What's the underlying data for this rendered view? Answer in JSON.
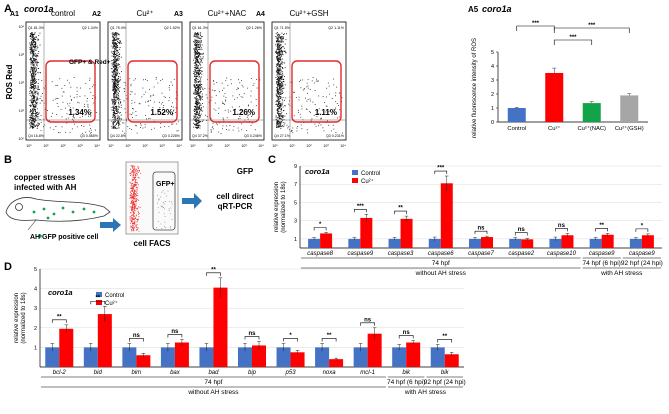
{
  "panelA": {
    "letter": "A",
    "gene": "coro1a",
    "ylabel": "ROS Red",
    "xlabel": "GFP",
    "gate_note": "GFP+ & Red+",
    "plots": [
      {
        "id": "A1",
        "title": "control",
        "q1": "Q1 81.3%",
        "q2": "Q2 1.34%",
        "q3": "Q3 0.565%",
        "q4": "Q4 16.8%",
        "gate": "1.34%"
      },
      {
        "id": "A2",
        "title": "Cu²⁺",
        "q1": "Q1 75.4%",
        "q2": "Q2 1.52%",
        "q3": "Q3 0.228%",
        "q4": "Q4 22.8%",
        "gate": "1.52%"
      },
      {
        "id": "A3",
        "title": "Cu²⁺+NAC",
        "q1": "Q1 61.3%",
        "q2": "Q2 1.26%",
        "q3": "Q3 0.246%",
        "q4": "Q4 37.2%",
        "gate": "1.26%"
      },
      {
        "id": "A4",
        "title": "Cu²⁺+GSH",
        "q1": "Q1 71.5%",
        "q2": "Q2 1.11%",
        "q3": "Q3 0.231%",
        "q4": "Q4 27.1%",
        "gate": "1.11%"
      }
    ],
    "axis_ticks": [
      "10⁰",
      "10¹",
      "10²",
      "10³",
      "10⁴"
    ]
  },
  "panelB": {
    "letter": "B",
    "text1": "copper stresses",
    "text2": "infected with AH",
    "legend": "AH  GFP positive cell",
    "facs_label": "cell FACS",
    "gate_label": "GFP+",
    "result1": "cell direct",
    "result2": "qRT-PCR"
  },
  "colors": {
    "control": "#4472c4",
    "cu": "#ff0000",
    "nac": "#13a44a",
    "gsh": "#a6a6a6",
    "gate": "#e32b2b",
    "arrow": "#2e75b6"
  },
  "chart_data": [
    {
      "panel": "A5",
      "type": "bar",
      "title": "coro1a",
      "ylabel": "relative fluorescence intensity of ROS",
      "categories": [
        "Control",
        "Cu²⁺",
        "Cu²⁺(NAC)",
        "Cu²⁺(GSH)"
      ],
      "values": [
        1.0,
        3.5,
        1.35,
        1.9
      ],
      "errors": [
        0.05,
        0.35,
        0.1,
        0.12
      ],
      "ylim": [
        0,
        5
      ],
      "yticks": [
        "0",
        "1",
        "2",
        "3",
        "4",
        "5"
      ],
      "significance": [
        "***",
        "***",
        "***"
      ]
    },
    {
      "panel": "C",
      "type": "bar",
      "title": "coro1a",
      "ylabel": "relative expression (normalized to 18s)",
      "categories": [
        "caspase8",
        "caspase9",
        "caspase3",
        "caspase6",
        "caspase7",
        "caspase2",
        "caspase10",
        "caspase9",
        "caspase9"
      ],
      "series": [
        {
          "name": "Control",
          "values": [
            1.0,
            1.0,
            1.0,
            1.0,
            1.0,
            1.0,
            1.0,
            1.0,
            1.0
          ],
          "errors": [
            0.15,
            0.15,
            0.15,
            0.2,
            0.15,
            0.15,
            0.2,
            0.15,
            0.15
          ]
        },
        {
          "name": "Cu²⁺",
          "values": [
            1.6,
            3.3,
            3.2,
            7.1,
            1.2,
            0.95,
            1.4,
            1.45,
            1.4
          ],
          "errors": [
            0.1,
            0.4,
            0.3,
            0.8,
            0.1,
            0.1,
            0.2,
            0.15,
            0.15
          ]
        }
      ],
      "significance": [
        "*",
        "***",
        "**",
        "***",
        "ns",
        "ns",
        "ns",
        "**",
        "*"
      ],
      "ylim": [
        0,
        9
      ],
      "yticks": [
        "1",
        "3",
        "5",
        "7",
        "9"
      ],
      "groups": [
        {
          "label": "74 hpf",
          "condition": "without AH  stress",
          "from": 0,
          "to": 6
        },
        {
          "label": "74 hpf (6 hpi)",
          "condition": "with AH stress",
          "from": 7,
          "to": 7
        },
        {
          "label": "92 hpf (24 hpi)",
          "condition": "with AH stress",
          "from": 8,
          "to": 8
        }
      ]
    },
    {
      "panel": "D",
      "type": "bar",
      "title": "coro1a",
      "ylabel": "relative expression (normalized to 18s)",
      "categories": [
        "bcl-2",
        "bid",
        "bim",
        "bax",
        "bad",
        "bip",
        "p53",
        "noxa",
        "mcl-1",
        "bik",
        "bik"
      ],
      "series": [
        {
          "name": "Control",
          "values": [
            1.0,
            1.0,
            1.0,
            1.0,
            1.0,
            1.0,
            1.0,
            1.0,
            1.0,
            1.0,
            1.0
          ],
          "errors": [
            0.2,
            0.2,
            0.2,
            0.2,
            0.2,
            0.2,
            0.2,
            0.2,
            0.2,
            0.15,
            0.15
          ]
        },
        {
          "name": "Cu²⁺",
          "values": [
            1.95,
            2.7,
            0.6,
            1.25,
            4.05,
            1.1,
            0.75,
            0.4,
            1.7,
            1.25,
            0.65
          ],
          "errors": [
            0.2,
            0.4,
            0.1,
            0.15,
            0.5,
            0.2,
            0.1,
            0.05,
            0.3,
            0.1,
            0.1
          ]
        }
      ],
      "significance": [
        "**",
        "**",
        "ns",
        "ns",
        "**",
        "ns",
        "*",
        "**",
        "ns",
        "ns",
        "**"
      ],
      "ylim": [
        0,
        5
      ],
      "yticks": [
        "1",
        "2",
        "3",
        "4",
        "5"
      ],
      "groups": [
        {
          "label": "74 hpf",
          "condition": "without AH  stress",
          "from": 0,
          "to": 8
        },
        {
          "label": "74 hpf (6 hpi)",
          "condition": "with AH  stress",
          "from": 9,
          "to": 9
        },
        {
          "label": "92 hpf (24 hpi)",
          "condition": "with AH  stress",
          "from": 10,
          "to": 10
        }
      ]
    }
  ]
}
